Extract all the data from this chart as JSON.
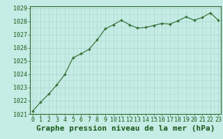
{
  "x": [
    0,
    1,
    2,
    3,
    4,
    5,
    6,
    7,
    8,
    9,
    10,
    11,
    12,
    13,
    14,
    15,
    16,
    17,
    18,
    19,
    20,
    21,
    22,
    23
  ],
  "y": [
    1021.2,
    1021.9,
    1022.5,
    1023.2,
    1024.0,
    1025.25,
    1025.55,
    1025.9,
    1026.6,
    1027.45,
    1027.75,
    1028.1,
    1027.75,
    1027.5,
    1027.55,
    1027.7,
    1027.85,
    1027.8,
    1028.05,
    1028.35,
    1028.1,
    1028.3,
    1028.65,
    1028.1
  ],
  "line_color": "#2d6a2d",
  "marker_color": "#2d6a2d",
  "bg_color": "#c5ece5",
  "grid_color": "#a8d5cc",
  "border_color": "#2d6a2d",
  "label_color": "#1a5a1a",
  "ylim": [
    1021,
    1029
  ],
  "yticks": [
    1021,
    1022,
    1023,
    1024,
    1025,
    1026,
    1027,
    1028,
    1029
  ],
  "xlim": [
    0,
    23
  ],
  "xticks": [
    0,
    1,
    2,
    3,
    4,
    5,
    6,
    7,
    8,
    9,
    10,
    11,
    12,
    13,
    14,
    15,
    16,
    17,
    18,
    19,
    20,
    21,
    22,
    23
  ],
  "tick_label_fontsize": 6.0,
  "title": "Graphe pression niveau de la mer (hPa)",
  "title_fontsize": 8.0
}
